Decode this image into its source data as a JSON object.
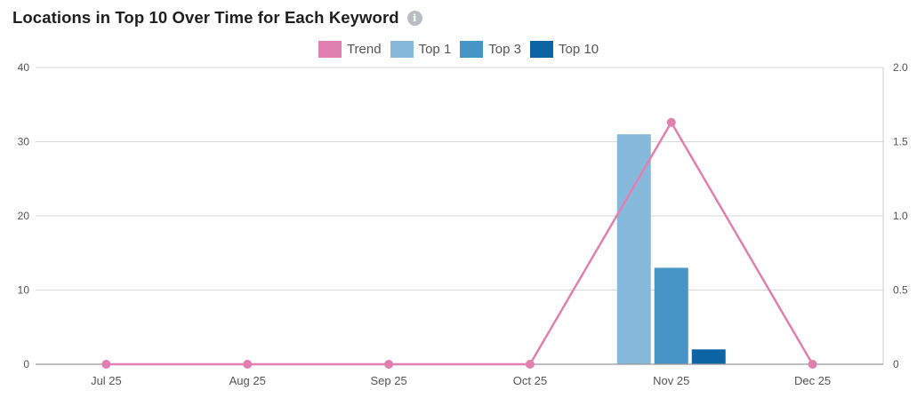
{
  "chart_data": {
    "type": "bar",
    "title": "Locations in Top 10 Over Time for Each Keyword",
    "categories": [
      "Jul 25",
      "Aug 25",
      "Sep 25",
      "Oct 25",
      "Nov 25",
      "Dec 25"
    ],
    "series": [
      {
        "name": "Trend",
        "kind": "line",
        "axis": "right",
        "color": "#e27fb1",
        "values": [
          0,
          0,
          0,
          0,
          1.63,
          0
        ]
      },
      {
        "name": "Top 1",
        "kind": "bar",
        "axis": "left",
        "color": "#86b9dc",
        "values": [
          0,
          0,
          0,
          0,
          31,
          0
        ]
      },
      {
        "name": "Top 3",
        "kind": "bar",
        "axis": "left",
        "color": "#4794c7",
        "values": [
          0,
          0,
          0,
          0,
          13,
          0
        ]
      },
      {
        "name": "Top 10",
        "kind": "bar",
        "axis": "left",
        "color": "#0c64a3",
        "values": [
          0,
          0,
          0,
          0,
          2,
          0
        ]
      }
    ],
    "y_left": {
      "ylim": [
        0,
        40
      ],
      "ticks": [
        "0",
        "10",
        "20",
        "30",
        "40"
      ]
    },
    "y_right": {
      "ylim": [
        0,
        2
      ],
      "ticks": [
        "0",
        "0.5",
        "1.0",
        "1.5",
        "2.0"
      ]
    },
    "grid": true,
    "legend_position": "top-center"
  }
}
